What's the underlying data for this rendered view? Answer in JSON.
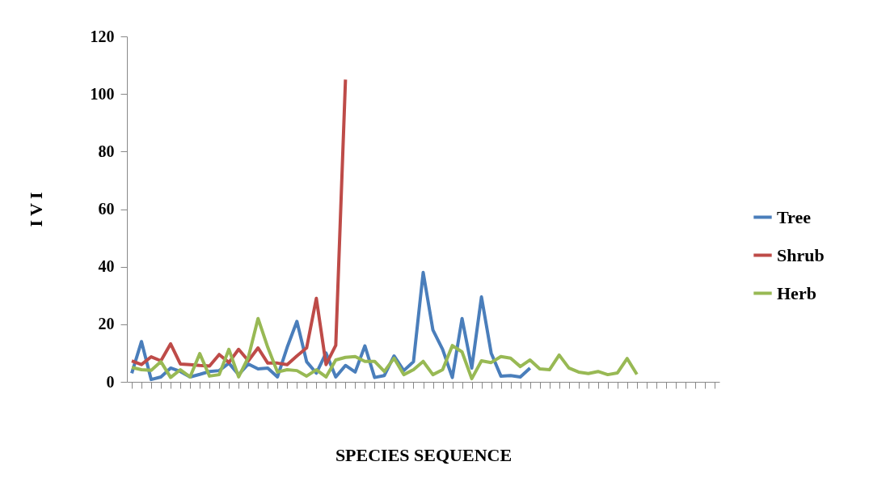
{
  "chart_data": {
    "type": "line",
    "xlabel": "SPECIES SEQUENCE",
    "ylabel": "I V I",
    "categories": [
      null,
      null,
      null,
      null,
      null,
      null,
      null,
      null,
      null,
      null,
      null,
      null,
      null,
      null,
      null,
      null,
      null,
      null,
      null,
      null,
      null,
      null,
      null,
      null,
      null,
      null,
      null,
      null,
      null,
      null,
      null,
      null,
      null,
      null,
      null,
      null,
      null,
      null,
      null,
      null,
      null,
      null,
      null,
      null,
      null,
      null,
      null,
      null,
      null,
      null,
      null,
      null,
      null,
      null,
      null,
      null,
      null,
      null,
      null,
      null,
      null
    ],
    "ylim": [
      0,
      120
    ],
    "yticks": [
      0,
      20,
      40,
      60,
      80,
      100,
      120
    ],
    "grid": false,
    "legend": "right",
    "line_style": "solid",
    "marker": "none",
    "series": [
      {
        "name": "Tree",
        "color": "#4a7ebb",
        "values": [
          3,
          14,
          0.8,
          1.7,
          4.8,
          3.6,
          1.7,
          2.6,
          3.6,
          3.9,
          6.5,
          2.5,
          6.2,
          4.5,
          4.8,
          1.7,
          12,
          21,
          7,
          3,
          10,
          1.7,
          5.7,
          3.4,
          12.5,
          1.5,
          2.2,
          9,
          3.9,
          7,
          38,
          18,
          11.3,
          1.5,
          22,
          4.8,
          29.5,
          10,
          2,
          2.2,
          1.7,
          4.8,
          null,
          null,
          null,
          null,
          null,
          null,
          null,
          null,
          null,
          null,
          null,
          null,
          null,
          null,
          null,
          null,
          null,
          null,
          null
        ]
      },
      {
        "name": "Shrub",
        "color": "#be4b48",
        "values": [
          7.3,
          6,
          8.7,
          7.3,
          13.2,
          6.2,
          6,
          5.7,
          5.5,
          9.5,
          6.7,
          11.3,
          7.3,
          11.8,
          6.5,
          6.5,
          6,
          9,
          11.8,
          29,
          6,
          12.7,
          105,
          null,
          null,
          null,
          null,
          null,
          null,
          null,
          null,
          null,
          null,
          null,
          null,
          null,
          null,
          null,
          null,
          null,
          null,
          null,
          null,
          null,
          null,
          null,
          null,
          null,
          null,
          null,
          null,
          null,
          null,
          null,
          null,
          null,
          null,
          null,
          null,
          null,
          null
        ]
      },
      {
        "name": "Herb",
        "color": "#98b954",
        "values": [
          5,
          4.2,
          4,
          7,
          1.5,
          4.2,
          1.7,
          9.8,
          2,
          2.5,
          11.3,
          1.7,
          8.5,
          22,
          12,
          3.4,
          4.2,
          3.9,
          2,
          4.2,
          1.7,
          7.6,
          8.5,
          8.8,
          7.1,
          7.1,
          3.6,
          8.2,
          2.5,
          4.2,
          7.1,
          2.5,
          4.2,
          12.6,
          10.4,
          1.1,
          7.3,
          6.7,
          8.8,
          8.2,
          5.3,
          7.6,
          4.5,
          4.2,
          9.3,
          4.8,
          3.4,
          2.9,
          3.6,
          2.5,
          3.1,
          8.1,
          2.6,
          null,
          null,
          null,
          null,
          null,
          null,
          null,
          null
        ]
      }
    ]
  }
}
